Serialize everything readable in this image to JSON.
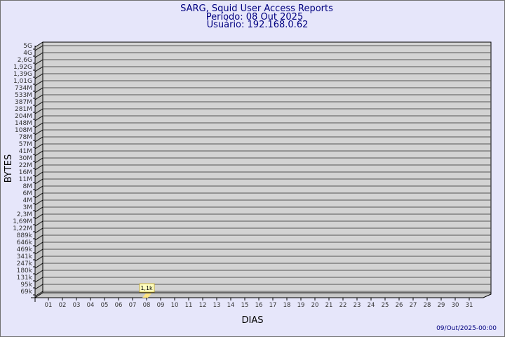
{
  "chart_data": {
    "type": "bar",
    "title": "SARG, Squid User Access Reports",
    "subtitle": [
      "Período: 08 Out 2025",
      "Usuário: 192.168.0.62"
    ],
    "xlabel": "DIAS",
    "ylabel": "BYTES",
    "y_scale": "log",
    "y_tick_labels": [
      "5G",
      "4G",
      "2,6G",
      "1,92G",
      "1,39G",
      "1,01G",
      "734M",
      "533M",
      "387M",
      "281M",
      "204M",
      "148M",
      "108M",
      "78M",
      "57M",
      "41M",
      "30M",
      "22M",
      "16M",
      "11M",
      "8M",
      "6M",
      "4M",
      "3M",
      "2,3M",
      "1,69M",
      "1,22M",
      "889k",
      "646k",
      "469k",
      "341k",
      "247k",
      "180k",
      "131k",
      "95k",
      "69k"
    ],
    "categories": [
      "01",
      "02",
      "03",
      "04",
      "05",
      "06",
      "07",
      "08",
      "09",
      "10",
      "11",
      "12",
      "13",
      "14",
      "15",
      "16",
      "17",
      "18",
      "19",
      "20",
      "21",
      "22",
      "23",
      "24",
      "25",
      "26",
      "27",
      "28",
      "29",
      "30",
      "31"
    ],
    "values": [
      {
        "day": "08",
        "bytes": 1100,
        "label": "1,1k"
      }
    ],
    "grid": true,
    "footer": "09/Out/2025-00:00",
    "colors": {
      "background": "#e6e6fa",
      "plot": "#d3d3d3",
      "text": "#000080",
      "bar": "#ffe680",
      "label_bg": "#ffffc0"
    }
  }
}
